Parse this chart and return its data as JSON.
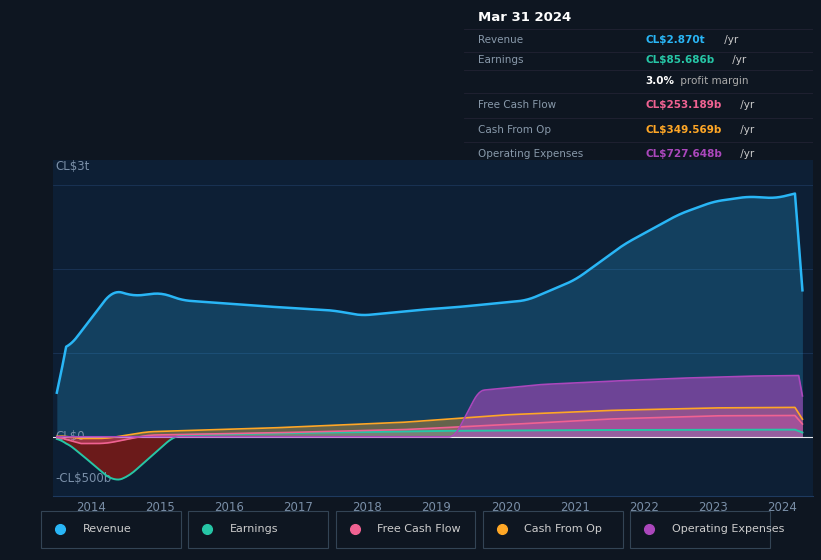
{
  "bg_color": "#0e1621",
  "plot_bg_color": "#0d1f35",
  "ylabel_top": "CL$3t",
  "ylabel_bottom": "-CL$500b",
  "ylabel_zero": "CL$0",
  "ylim_min": -700,
  "ylim_max": 3300,
  "revenue_color": "#29b6f6",
  "earnings_color": "#26c6a6",
  "fcf_color": "#f06292",
  "cashfromop_color": "#ffa726",
  "opex_color": "#ab47bc",
  "earnings_neg_fill": "#6b1a1a",
  "info_box": {
    "title": "Mar 31 2024",
    "revenue_label": "Revenue",
    "revenue_value": "CL$2.870t",
    "revenue_color": "#29b6f6",
    "earnings_label": "Earnings",
    "earnings_value": "CL$85.686b",
    "earnings_color": "#26c6a6",
    "margin_text_bold": "3.0%",
    "margin_text_plain": " profit margin",
    "fcf_label": "Free Cash Flow",
    "fcf_value": "CL$253.189b",
    "fcf_color": "#f06292",
    "cashop_label": "Cash From Op",
    "cashop_value": "CL$349.569b",
    "cashop_color": "#ffa726",
    "opex_label": "Operating Expenses",
    "opex_value": "CL$727.648b",
    "opex_color": "#ab47bc"
  },
  "legend": [
    {
      "label": "Revenue",
      "color": "#29b6f6"
    },
    {
      "label": "Earnings",
      "color": "#26c6a6"
    },
    {
      "label": "Free Cash Flow",
      "color": "#f06292"
    },
    {
      "label": "Cash From Op",
      "color": "#ffa726"
    },
    {
      "label": "Operating Expenses",
      "color": "#ab47bc"
    }
  ]
}
